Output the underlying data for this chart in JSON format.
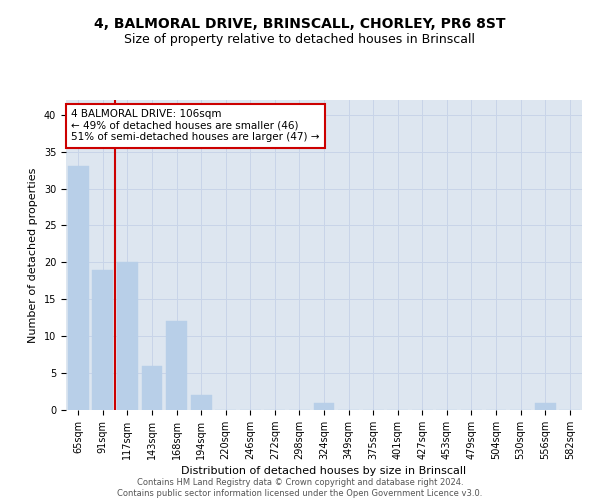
{
  "title_line1": "4, BALMORAL DRIVE, BRINSCALL, CHORLEY, PR6 8ST",
  "title_line2": "Size of property relative to detached houses in Brinscall",
  "xlabel": "Distribution of detached houses by size in Brinscall",
  "ylabel": "Number of detached properties",
  "categories": [
    "65sqm",
    "91sqm",
    "117sqm",
    "143sqm",
    "168sqm",
    "194sqm",
    "220sqm",
    "246sqm",
    "272sqm",
    "298sqm",
    "324sqm",
    "349sqm",
    "375sqm",
    "401sqm",
    "427sqm",
    "453sqm",
    "479sqm",
    "504sqm",
    "530sqm",
    "556sqm",
    "582sqm"
  ],
  "values": [
    33,
    19,
    20,
    6,
    12,
    2,
    0,
    0,
    0,
    0,
    1,
    0,
    0,
    0,
    0,
    0,
    0,
    0,
    0,
    1,
    0
  ],
  "bar_color": "#b8cfe8",
  "bar_edgecolor": "#b8cfe8",
  "vline_x": 1.5,
  "vline_color": "#cc0000",
  "annotation_text": "4 BALMORAL DRIVE: 106sqm\n← 49% of detached houses are smaller (46)\n51% of semi-detached houses are larger (47) →",
  "annotation_box_edgecolor": "#cc0000",
  "annotation_box_facecolor": "#ffffff",
  "ylim": [
    0,
    42
  ],
  "yticks": [
    0,
    5,
    10,
    15,
    20,
    25,
    30,
    35,
    40
  ],
  "grid_color": "#c8d4e8",
  "plot_background": "#dde6f0",
  "footer_line1": "Contains HM Land Registry data © Crown copyright and database right 2024.",
  "footer_line2": "Contains public sector information licensed under the Open Government Licence v3.0.",
  "title_fontsize": 10,
  "subtitle_fontsize": 9,
  "axis_label_fontsize": 8,
  "tick_fontsize": 7,
  "annotation_fontsize": 7.5
}
